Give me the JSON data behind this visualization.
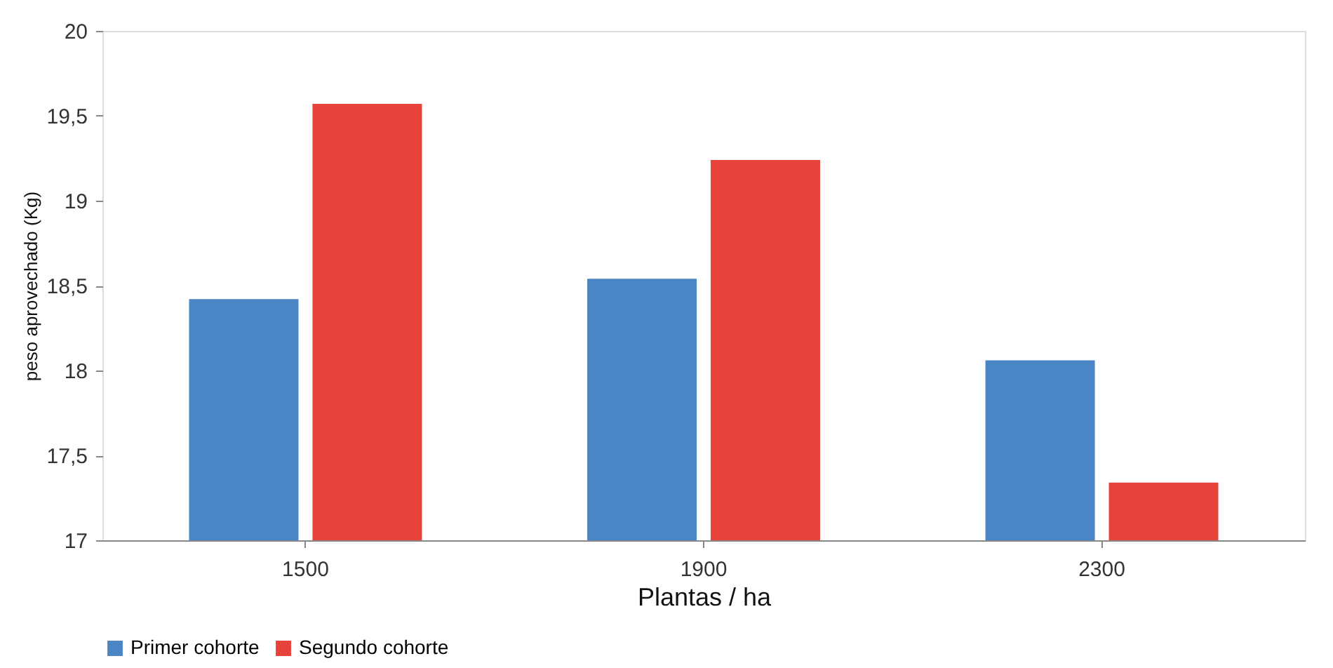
{
  "chart_data": {
    "type": "bar",
    "xlabel": "Plantas / ha",
    "ylabel": "peso aprovechado (Kg)",
    "categories": [
      "1500",
      "1900",
      "2300"
    ],
    "series": [
      {
        "name": "Primer cohorte",
        "color": "#4a86c5",
        "values": [
          18.42,
          18.54,
          18.06
        ]
      },
      {
        "name": "Segundo cohorte",
        "color": "#e8433a",
        "values": [
          19.57,
          19.24,
          17.34
        ]
      }
    ],
    "ylim": [
      17,
      20
    ],
    "yticks": [
      17,
      {
        "value": 17.5,
        "label": "17,5"
      },
      18,
      {
        "value": 18.5,
        "label": "18,5"
      },
      19,
      {
        "value": 19.5,
        "label": "19,5"
      },
      20
    ],
    "grid": false,
    "legend": "bottom"
  }
}
